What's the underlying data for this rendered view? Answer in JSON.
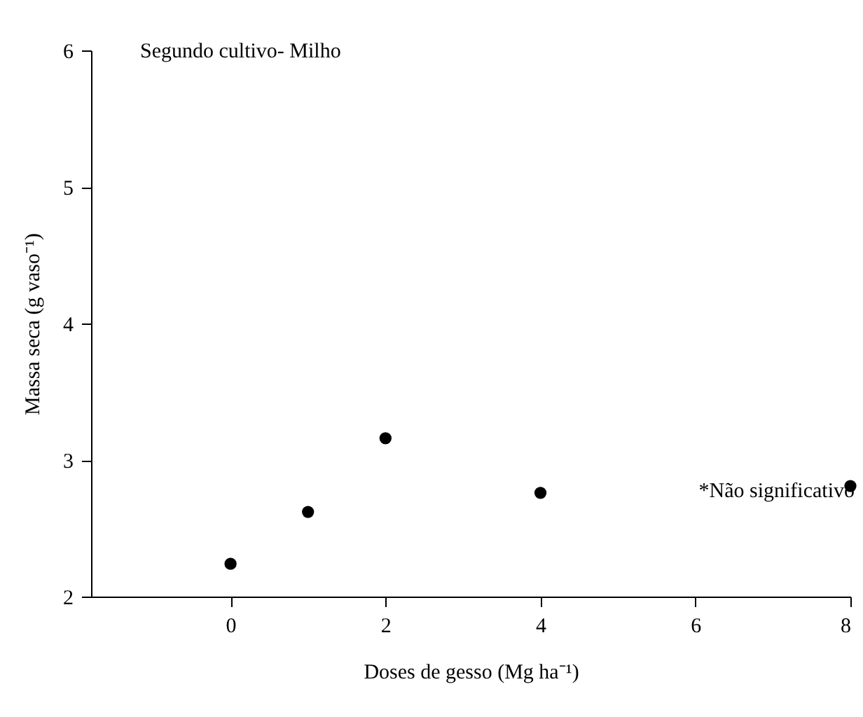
{
  "chart_data": {
    "type": "scatter",
    "title": "Segundo cultivo- Milho",
    "xlabel": "Doses de gesso (Mg ha⁻¹)",
    "ylabel": "Massa seca (g vaso⁻¹)",
    "x": [
      0,
      1,
      2,
      4,
      8
    ],
    "series": [
      {
        "color": "#000000",
        "values": [
          2.24,
          2.62,
          3.16,
          2.76,
          2.81
        ]
      }
    ],
    "xlim": [
      -1.8,
      8
    ],
    "xticks": [
      0,
      2,
      4,
      6,
      8
    ],
    "ylim": [
      2,
      6
    ],
    "yticks": [
      2,
      3,
      4,
      5,
      6
    ],
    "annotations": [
      "*Não significativo"
    ],
    "grid": false,
    "marker": "circle"
  }
}
